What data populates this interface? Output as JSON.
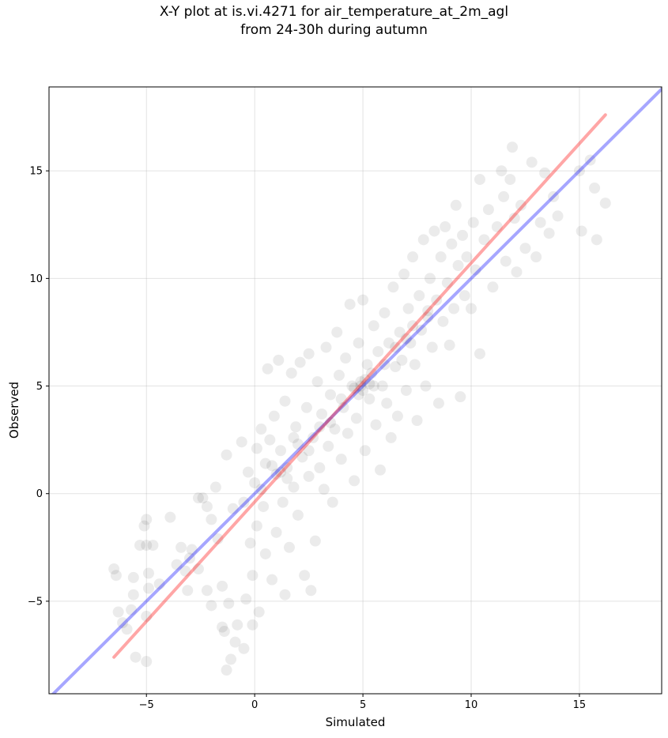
{
  "chart_data": {
    "type": "scatter",
    "title": "X-Y plot at is.vi.4271 for air_temperature_at_2m_agl",
    "subtitle": "from 24-30h during autumn",
    "xlabel": "Simulated",
    "ylabel": "Observed",
    "xlim": [
      -9.5,
      18.8
    ],
    "ylim": [
      -9.3,
      18.9
    ],
    "xticks": [
      -5,
      0,
      5,
      10,
      15
    ],
    "yticks": [
      -5,
      0,
      5,
      10,
      15
    ],
    "xtick_labels": [
      "−5",
      "0",
      "5",
      "10",
      "15"
    ],
    "ytick_labels": [
      "−5",
      "0",
      "5",
      "10",
      "15"
    ],
    "grid": true,
    "point_color": "#000000",
    "point_alpha": 0.08,
    "series": [
      {
        "kind": "points",
        "points": [
          [
            -6.5,
            -3.5
          ],
          [
            -6.4,
            -3.8
          ],
          [
            -6.3,
            -5.5
          ],
          [
            -6.1,
            -6.0
          ],
          [
            -5.9,
            -6.3
          ],
          [
            -5.7,
            -5.4
          ],
          [
            -5.6,
            -3.9
          ],
          [
            -5.6,
            -4.7
          ],
          [
            -5.5,
            -7.6
          ],
          [
            -5.3,
            -2.4
          ],
          [
            -5.1,
            -1.5
          ],
          [
            -5.0,
            -1.2
          ],
          [
            -5.0,
            -2.4
          ],
          [
            -4.9,
            -3.7
          ],
          [
            -4.9,
            -4.4
          ],
          [
            -5.0,
            -5.7
          ],
          [
            -5.0,
            -7.8
          ],
          [
            -4.7,
            -2.4
          ],
          [
            -4.4,
            -4.2
          ],
          [
            -3.9,
            -1.1
          ],
          [
            -3.6,
            -3.3
          ],
          [
            -3.4,
            -2.5
          ],
          [
            -3.2,
            -3.6
          ],
          [
            -3.1,
            -4.5
          ],
          [
            -3.0,
            -3.0
          ],
          [
            -2.9,
            -2.6
          ],
          [
            -2.6,
            -3.5
          ],
          [
            -2.6,
            -0.2
          ],
          [
            -2.4,
            -0.2
          ],
          [
            -2.2,
            -0.6
          ],
          [
            -2.2,
            -4.5
          ],
          [
            -2.0,
            -1.2
          ],
          [
            -2.0,
            -5.2
          ],
          [
            -1.8,
            0.3
          ],
          [
            -1.7,
            -2.1
          ],
          [
            -1.5,
            -4.3
          ],
          [
            -1.5,
            -6.2
          ],
          [
            -1.4,
            -6.4
          ],
          [
            -1.3,
            1.8
          ],
          [
            -1.3,
            -8.2
          ],
          [
            -1.2,
            -5.1
          ],
          [
            -1.1,
            -7.7
          ],
          [
            -1.0,
            -0.7
          ],
          [
            -0.9,
            -6.9
          ],
          [
            -0.8,
            -6.1
          ],
          [
            -0.6,
            2.4
          ],
          [
            -0.5,
            -0.4
          ],
          [
            -0.4,
            -4.9
          ],
          [
            -0.5,
            -7.2
          ],
          [
            -0.3,
            1.0
          ],
          [
            -0.2,
            -2.3
          ],
          [
            -0.1,
            -3.8
          ],
          [
            -0.1,
            -6.1
          ],
          [
            0.0,
            0.5
          ],
          [
            0.1,
            2.1
          ],
          [
            0.1,
            -1.5
          ],
          [
            0.2,
            -5.5
          ],
          [
            0.3,
            3.0
          ],
          [
            0.4,
            -0.6
          ],
          [
            0.5,
            1.4
          ],
          [
            0.5,
            -2.8
          ],
          [
            0.6,
            5.8
          ],
          [
            0.7,
            2.5
          ],
          [
            0.8,
            -4.0
          ],
          [
            0.9,
            3.6
          ],
          [
            1.0,
            0.9
          ],
          [
            1.0,
            -1.8
          ],
          [
            1.1,
            6.2
          ],
          [
            1.2,
            2.0
          ],
          [
            1.3,
            -0.4
          ],
          [
            1.4,
            4.3
          ],
          [
            1.4,
            -4.7
          ],
          [
            1.5,
            1.2
          ],
          [
            1.6,
            -2.5
          ],
          [
            1.7,
            5.6
          ],
          [
            1.8,
            0.3
          ],
          [
            1.9,
            3.1
          ],
          [
            2.0,
            -1.0
          ],
          [
            2.1,
            6.1
          ],
          [
            2.2,
            1.7
          ],
          [
            2.3,
            -3.8
          ],
          [
            2.4,
            4.0
          ],
          [
            2.5,
            0.8
          ],
          [
            2.5,
            6.5
          ],
          [
            2.6,
            -4.5
          ],
          [
            2.7,
            2.6
          ],
          [
            2.8,
            -2.2
          ],
          [
            2.9,
            5.2
          ],
          [
            3.0,
            1.2
          ],
          [
            3.1,
            3.7
          ],
          [
            3.2,
            0.2
          ],
          [
            3.3,
            6.8
          ],
          [
            3.4,
            2.2
          ],
          [
            3.5,
            4.6
          ],
          [
            3.6,
            -0.4
          ],
          [
            3.7,
            3.0
          ],
          [
            3.8,
            7.5
          ],
          [
            3.9,
            5.5
          ],
          [
            4.0,
            1.6
          ],
          [
            4.1,
            4.0
          ],
          [
            4.2,
            6.3
          ],
          [
            4.3,
            2.8
          ],
          [
            4.4,
            8.8
          ],
          [
            4.5,
            5.0
          ],
          [
            4.6,
            0.6
          ],
          [
            4.7,
            3.5
          ],
          [
            4.8,
            7.0
          ],
          [
            4.9,
            5.2
          ],
          [
            5.0,
            4.8
          ],
          [
            5.0,
            9.0
          ],
          [
            5.1,
            2.0
          ],
          [
            5.2,
            6.0
          ],
          [
            5.3,
            4.4
          ],
          [
            5.4,
            5.6
          ],
          [
            5.5,
            7.8
          ],
          [
            5.6,
            3.2
          ],
          [
            5.7,
            6.6
          ],
          [
            5.8,
            1.1
          ],
          [
            5.9,
            5.0
          ],
          [
            6.0,
            8.4
          ],
          [
            6.1,
            4.2
          ],
          [
            6.2,
            7.0
          ],
          [
            6.3,
            2.6
          ],
          [
            6.4,
            9.6
          ],
          [
            6.5,
            5.9
          ],
          [
            6.6,
            3.6
          ],
          [
            6.7,
            7.5
          ],
          [
            6.8,
            6.2
          ],
          [
            6.9,
            10.2
          ],
          [
            7.0,
            4.8
          ],
          [
            7.1,
            8.6
          ],
          [
            7.2,
            7.0
          ],
          [
            7.3,
            11.0
          ],
          [
            7.4,
            6.0
          ],
          [
            7.5,
            3.4
          ],
          [
            7.6,
            9.2
          ],
          [
            7.7,
            7.6
          ],
          [
            7.8,
            11.8
          ],
          [
            7.9,
            5.0
          ],
          [
            8.0,
            8.2
          ],
          [
            8.1,
            10.0
          ],
          [
            8.2,
            6.8
          ],
          [
            8.3,
            12.2
          ],
          [
            8.4,
            9.0
          ],
          [
            8.5,
            4.2
          ],
          [
            8.6,
            11.0
          ],
          [
            8.7,
            8.0
          ],
          [
            8.8,
            12.4
          ],
          [
            8.9,
            9.8
          ],
          [
            9.0,
            6.9
          ],
          [
            9.1,
            11.6
          ],
          [
            9.2,
            8.6
          ],
          [
            9.3,
            13.4
          ],
          [
            9.4,
            10.6
          ],
          [
            9.5,
            4.5
          ],
          [
            9.6,
            12.0
          ],
          [
            9.7,
            9.2
          ],
          [
            9.8,
            11.0
          ],
          [
            10.0,
            8.6
          ],
          [
            10.1,
            12.6
          ],
          [
            10.2,
            10.4
          ],
          [
            10.4,
            14.6
          ],
          [
            10.4,
            6.5
          ],
          [
            10.6,
            11.8
          ],
          [
            10.8,
            13.2
          ],
          [
            11.0,
            9.6
          ],
          [
            11.2,
            12.4
          ],
          [
            11.4,
            15.0
          ],
          [
            11.5,
            13.8
          ],
          [
            11.6,
            10.8
          ],
          [
            11.8,
            14.6
          ],
          [
            11.9,
            16.1
          ],
          [
            12.0,
            12.8
          ],
          [
            12.1,
            10.3
          ],
          [
            12.3,
            13.4
          ],
          [
            12.5,
            11.4
          ],
          [
            12.8,
            15.4
          ],
          [
            13.0,
            11.0
          ],
          [
            13.2,
            12.6
          ],
          [
            13.4,
            14.9
          ],
          [
            13.6,
            12.1
          ],
          [
            13.8,
            13.8
          ],
          [
            14.0,
            12.9
          ],
          [
            15.0,
            15.0
          ],
          [
            15.1,
            12.2
          ],
          [
            15.5,
            15.5
          ],
          [
            15.7,
            14.2
          ],
          [
            15.8,
            11.8
          ],
          [
            16.2,
            13.5
          ],
          [
            4.9,
            5.0
          ],
          [
            5.1,
            5.3
          ],
          [
            4.8,
            4.6
          ],
          [
            5.3,
            5.1
          ],
          [
            4.6,
            4.9
          ],
          [
            1.2,
            1.0
          ],
          [
            1.5,
            0.7
          ],
          [
            0.8,
            1.3
          ],
          [
            2.0,
            2.3
          ],
          [
            3.0,
            3.1
          ],
          [
            6.0,
            6.0
          ],
          [
            6.5,
            6.8
          ],
          [
            7.0,
            7.2
          ],
          [
            3.5,
            3.3
          ],
          [
            2.5,
            2.0
          ],
          [
            4.0,
            4.4
          ],
          [
            5.5,
            5.0
          ],
          [
            1.8,
            2.6
          ],
          [
            0.3,
            0.2
          ],
          [
            7.3,
            7.8
          ],
          [
            8.0,
            8.5
          ]
        ]
      },
      {
        "kind": "line",
        "color": "#0000ff",
        "alpha": 0.35,
        "points": [
          [
            -9.5,
            -9.5
          ],
          [
            18.8,
            18.8
          ]
        ]
      },
      {
        "kind": "line",
        "color": "#ff0000",
        "alpha": 0.35,
        "points": [
          [
            -6.5,
            -7.6
          ],
          [
            16.2,
            17.6
          ]
        ]
      }
    ]
  }
}
